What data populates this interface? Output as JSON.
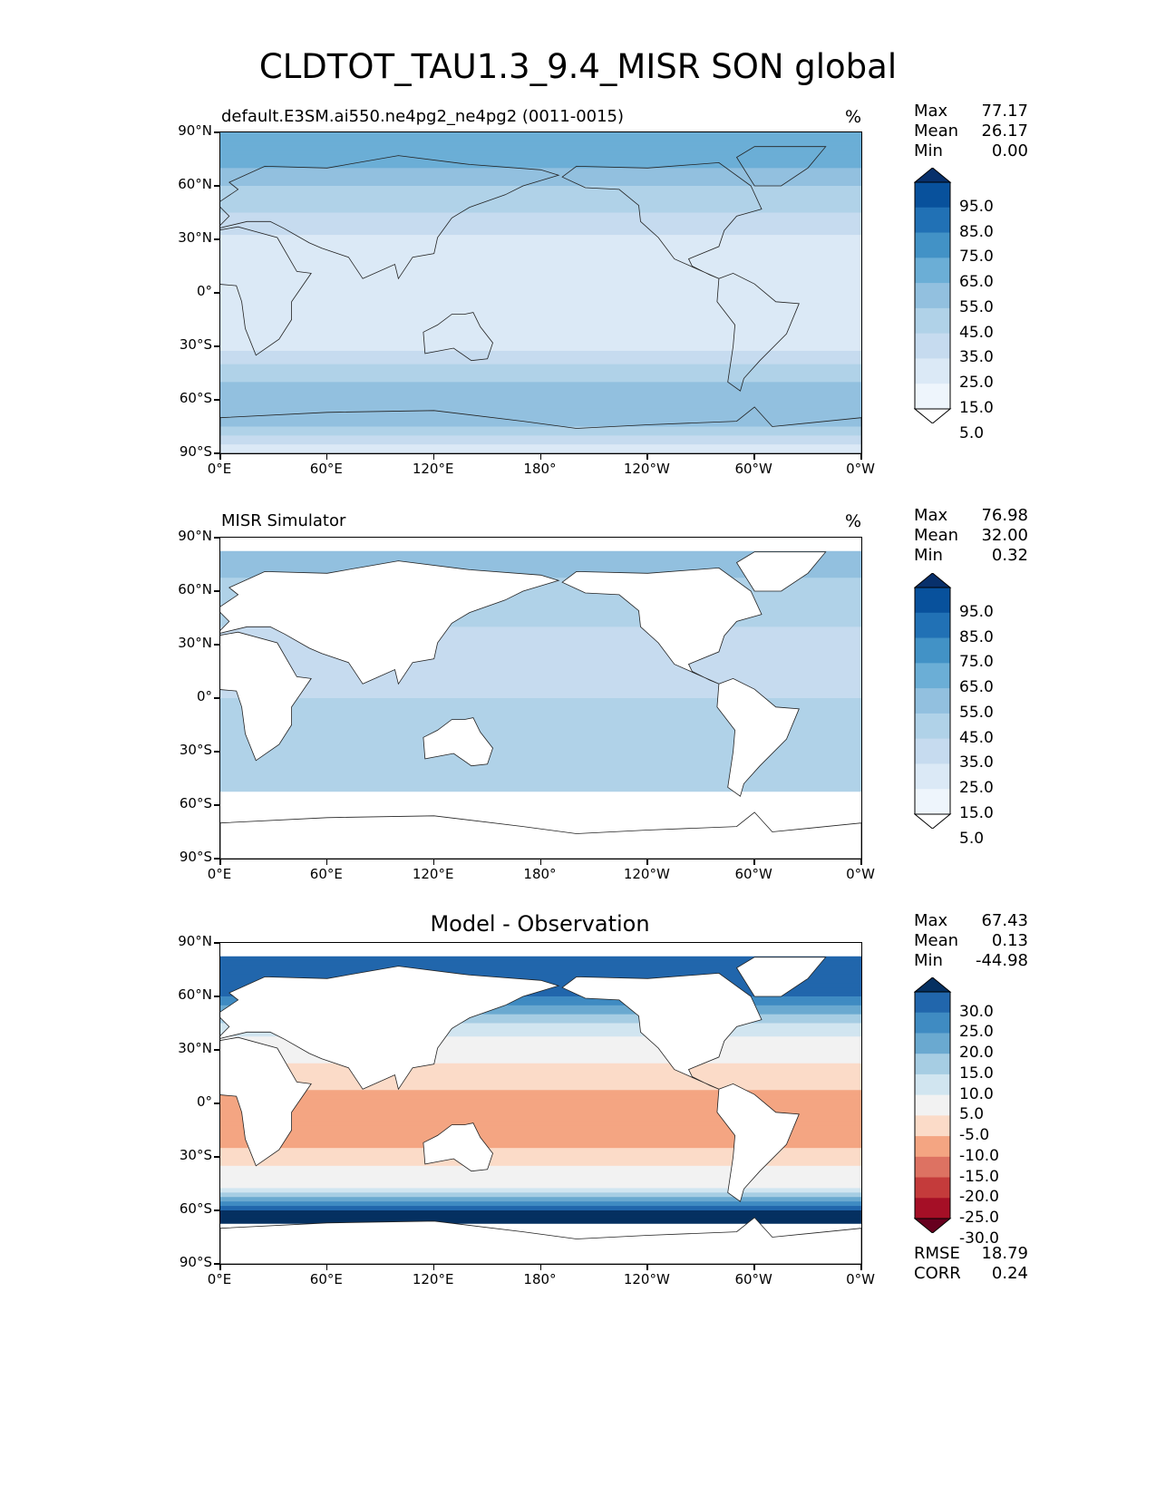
{
  "suptitle": "CLDTOT_TAU1.3_9.4_MISR SON global",
  "chart_data": [
    {
      "type": "heatmap",
      "title_left": "default.E3SM.ai550.ne4pg2_ne4pg2 (0011-0015)",
      "title_center": "",
      "units": "%",
      "stats": [
        {
          "label": "Max",
          "value": "77.17"
        },
        {
          "label": "Mean",
          "value": "26.17"
        },
        {
          "label": "Min",
          "value": "0.00"
        }
      ],
      "lat_ticks": [
        "90°N",
        "60°N",
        "30°N",
        "0°",
        "30°S",
        "60°S",
        "90°S"
      ],
      "lon_ticks": [
        "0°E",
        "60°E",
        "120°E",
        "180°",
        "120°W",
        "60°W",
        "0°W"
      ],
      "colorbar": {
        "levels": [
          "95.0",
          "85.0",
          "75.0",
          "65.0",
          "55.0",
          "45.0",
          "35.0",
          "25.0",
          "15.0",
          "5.0"
        ],
        "colors": [
          "#08306b",
          "#08519c",
          "#2171b5",
          "#4292c6",
          "#6baed6",
          "#92c0df",
          "#b0d2e8",
          "#c6dbef",
          "#dbe9f6",
          "#eef5fc",
          "#ffffff"
        ],
        "extend": "both"
      },
      "zonal_profile": {
        "lat": [
          90,
          75,
          60,
          45,
          30,
          15,
          0,
          -15,
          -30,
          -45,
          -60,
          -75,
          -90
        ],
        "value": [
          55,
          60,
          45,
          35,
          22,
          18,
          25,
          20,
          20,
          40,
          55,
          45,
          15
        ]
      },
      "rmse": null
    },
    {
      "type": "heatmap",
      "title_left": "MISR Simulator",
      "title_center": "",
      "units": "%",
      "stats": [
        {
          "label": "Max",
          "value": "76.98"
        },
        {
          "label": "Mean",
          "value": "32.00"
        },
        {
          "label": "Min",
          "value": "0.32"
        }
      ],
      "lat_ticks": [
        "90°N",
        "60°N",
        "30°N",
        "0°",
        "30°S",
        "60°S",
        "90°S"
      ],
      "lon_ticks": [
        "0°E",
        "60°E",
        "120°E",
        "180°",
        "120°W",
        "60°W",
        "0°W"
      ],
      "colorbar": {
        "levels": [
          "95.0",
          "85.0",
          "75.0",
          "65.0",
          "55.0",
          "45.0",
          "35.0",
          "25.0",
          "15.0",
          "5.0"
        ],
        "colors": [
          "#08306b",
          "#08519c",
          "#2171b5",
          "#4292c6",
          "#6baed6",
          "#92c0df",
          "#b0d2e8",
          "#c6dbef",
          "#dbe9f6",
          "#eef5fc",
          "#ffffff"
        ],
        "extend": "both"
      },
      "zonal_profile": {
        "lat": [
          90,
          75,
          60,
          45,
          30,
          15,
          0,
          -15,
          -30,
          -45,
          -60,
          -75,
          -90
        ],
        "value": [
          null,
          50,
          40,
          38,
          30,
          30,
          35,
          38,
          40,
          40,
          null,
          null,
          null
        ]
      },
      "rmse": null
    },
    {
      "type": "heatmap",
      "title_left": "",
      "title_center": "Model - Observation",
      "units": "",
      "stats": [
        {
          "label": "Max",
          "value": "67.43"
        },
        {
          "label": "Mean",
          "value": "0.13"
        },
        {
          "label": "Min",
          "value": "-44.98"
        }
      ],
      "lat_ticks": [
        "90°N",
        "60°N",
        "30°N",
        "0°",
        "30°S",
        "60°S",
        "90°S"
      ],
      "lon_ticks": [
        "0°E",
        "60°E",
        "120°E",
        "180°",
        "120°W",
        "60°W",
        "0°W"
      ],
      "colorbar": {
        "levels": [
          "30.0",
          "25.0",
          "20.0",
          "15.0",
          "10.0",
          "5.0",
          "-5.0",
          "-10.0",
          "-15.0",
          "-20.0",
          "-25.0",
          "-30.0"
        ],
        "colors": [
          "#053061",
          "#2166ac",
          "#3f8bc2",
          "#6aa9d0",
          "#a6cde3",
          "#d1e5f0",
          "#f2f2f2",
          "#fbdbc8",
          "#f4a582",
          "#dd7262",
          "#c43b3b",
          "#a50f26",
          "#67001f"
        ],
        "extend": "both"
      },
      "zonal_profile": {
        "lat": [
          90,
          75,
          60,
          45,
          30,
          15,
          0,
          -15,
          -30,
          -45,
          -60,
          -75,
          -90
        ],
        "value": [
          null,
          28,
          25,
          10,
          -2,
          -8,
          -12,
          -14,
          -8,
          2,
          30,
          null,
          null
        ]
      },
      "rmse": [
        {
          "label": "RMSE",
          "value": "18.79"
        },
        {
          "label": "CORR",
          "value": "0.24"
        }
      ]
    }
  ]
}
